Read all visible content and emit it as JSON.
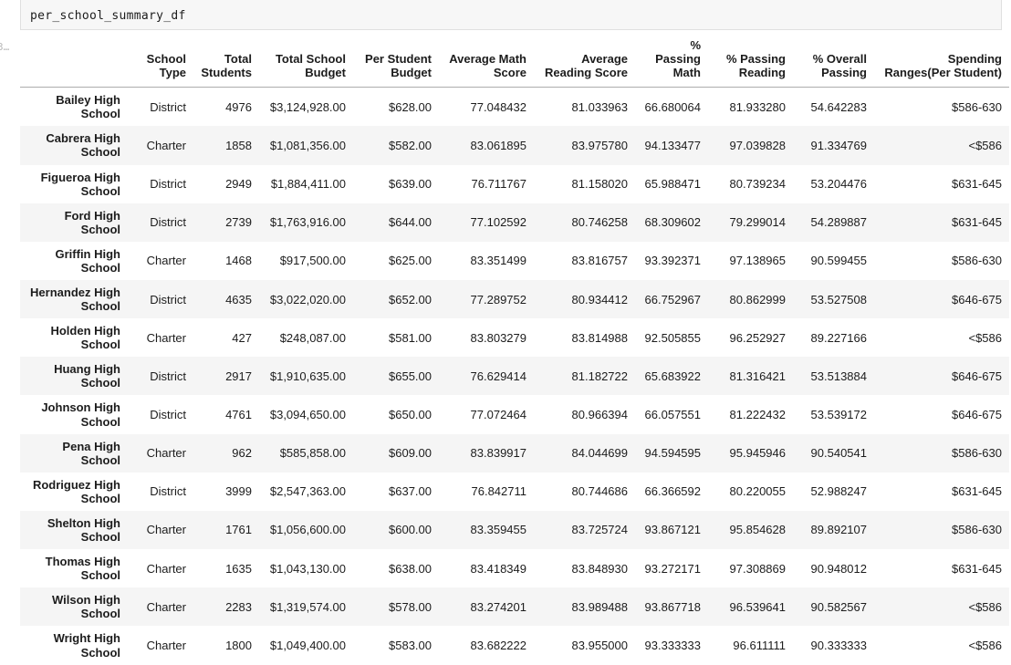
{
  "colors": {
    "text": "#1c1c1c",
    "stripe": "#f5f5f5",
    "code-bg": "#f7f7f7",
    "border": "#e0e0e0",
    "header-border": "#adadad",
    "muted": "#b9b9b9"
  },
  "code_cell": {
    "source": "per_school_summary_df"
  },
  "execution_indicator": "3…",
  "table": {
    "columns": [
      "School Type",
      "Total Students",
      "Total School Budget",
      "Per Student Budget",
      "Average Math Score",
      "Average Reading Score",
      "% Passing Math",
      "% Passing Reading",
      "% Overall Passing",
      "Spending Ranges(Per Student)"
    ],
    "rows": [
      {
        "label_lines": [
          "Bailey High",
          "School"
        ],
        "values": [
          "District",
          "4976",
          "$3,124,928.00",
          "$628.00",
          "77.048432",
          "81.033963",
          "66.680064",
          "81.933280",
          "54.642283",
          "$586-630"
        ]
      },
      {
        "label_lines": [
          "Cabrera High",
          "School"
        ],
        "values": [
          "Charter",
          "1858",
          "$1,081,356.00",
          "$582.00",
          "83.061895",
          "83.975780",
          "94.133477",
          "97.039828",
          "91.334769",
          "<$586"
        ]
      },
      {
        "label_lines": [
          "Figueroa High",
          "School"
        ],
        "values": [
          "District",
          "2949",
          "$1,884,411.00",
          "$639.00",
          "76.711767",
          "81.158020",
          "65.988471",
          "80.739234",
          "53.204476",
          "$631-645"
        ]
      },
      {
        "label_lines": [
          "Ford High",
          "School"
        ],
        "values": [
          "District",
          "2739",
          "$1,763,916.00",
          "$644.00",
          "77.102592",
          "80.746258",
          "68.309602",
          "79.299014",
          "54.289887",
          "$631-645"
        ]
      },
      {
        "label_lines": [
          "Griffin High",
          "School"
        ],
        "values": [
          "Charter",
          "1468",
          "$917,500.00",
          "$625.00",
          "83.351499",
          "83.816757",
          "93.392371",
          "97.138965",
          "90.599455",
          "$586-630"
        ]
      },
      {
        "label_lines": [
          "Hernandez High",
          "School"
        ],
        "values": [
          "District",
          "4635",
          "$3,022,020.00",
          "$652.00",
          "77.289752",
          "80.934412",
          "66.752967",
          "80.862999",
          "53.527508",
          "$646-675"
        ]
      },
      {
        "label_lines": [
          "Holden High",
          "School"
        ],
        "values": [
          "Charter",
          "427",
          "$248,087.00",
          "$581.00",
          "83.803279",
          "83.814988",
          "92.505855",
          "96.252927",
          "89.227166",
          "<$586"
        ]
      },
      {
        "label_lines": [
          "Huang High",
          "School"
        ],
        "values": [
          "District",
          "2917",
          "$1,910,635.00",
          "$655.00",
          "76.629414",
          "81.182722",
          "65.683922",
          "81.316421",
          "53.513884",
          "$646-675"
        ]
      },
      {
        "label_lines": [
          "Johnson High",
          "School"
        ],
        "values": [
          "District",
          "4761",
          "$3,094,650.00",
          "$650.00",
          "77.072464",
          "80.966394",
          "66.057551",
          "81.222432",
          "53.539172",
          "$646-675"
        ]
      },
      {
        "label_lines": [
          "Pena High",
          "School"
        ],
        "values": [
          "Charter",
          "962",
          "$585,858.00",
          "$609.00",
          "83.839917",
          "84.044699",
          "94.594595",
          "95.945946",
          "90.540541",
          "$586-630"
        ]
      },
      {
        "label_lines": [
          "Rodriguez High",
          "School"
        ],
        "values": [
          "District",
          "3999",
          "$2,547,363.00",
          "$637.00",
          "76.842711",
          "80.744686",
          "66.366592",
          "80.220055",
          "52.988247",
          "$631-645"
        ]
      },
      {
        "label_lines": [
          "Shelton High",
          "School"
        ],
        "values": [
          "Charter",
          "1761",
          "$1,056,600.00",
          "$600.00",
          "83.359455",
          "83.725724",
          "93.867121",
          "95.854628",
          "89.892107",
          "$586-630"
        ]
      },
      {
        "label_lines": [
          "Thomas High",
          "School"
        ],
        "values": [
          "Charter",
          "1635",
          "$1,043,130.00",
          "$638.00",
          "83.418349",
          "83.848930",
          "93.272171",
          "97.308869",
          "90.948012",
          "$631-645"
        ]
      },
      {
        "label_lines": [
          "Wilson High",
          "School"
        ],
        "values": [
          "Charter",
          "2283",
          "$1,319,574.00",
          "$578.00",
          "83.274201",
          "83.989488",
          "93.867718",
          "96.539641",
          "90.582567",
          "<$586"
        ]
      },
      {
        "label_lines": [
          "Wright High",
          "School"
        ],
        "values": [
          "Charter",
          "1800",
          "$1,049,400.00",
          "$583.00",
          "83.682222",
          "83.955000",
          "93.333333",
          "96.611111",
          "90.333333",
          "<$586"
        ]
      }
    ]
  }
}
